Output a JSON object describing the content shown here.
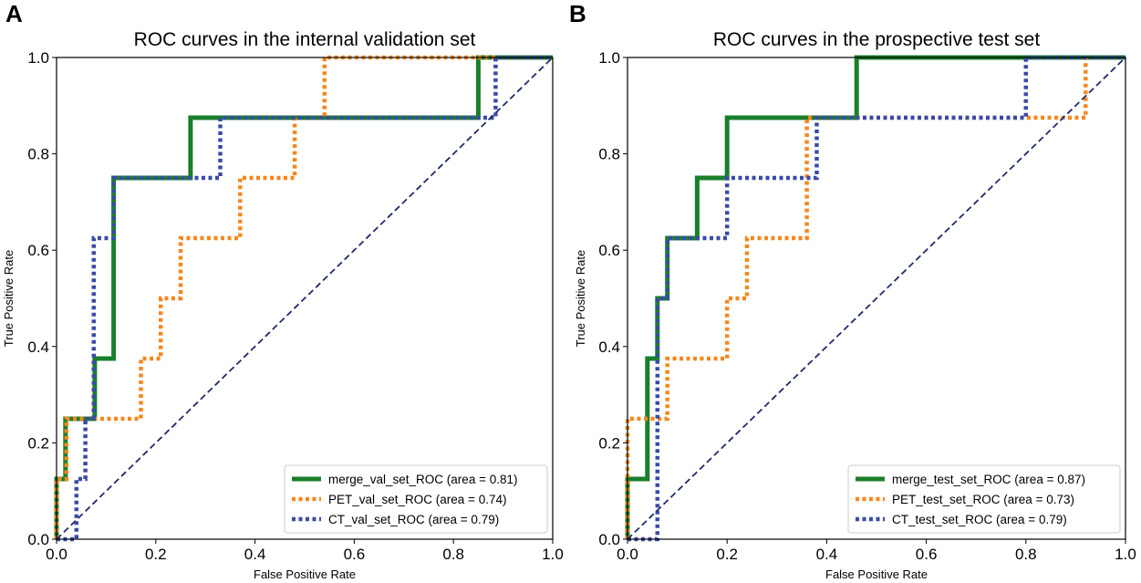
{
  "panel_letters": [
    "A",
    "B"
  ],
  "chart_data": [
    {
      "type": "line",
      "title": "ROC curves in the internal validation set",
      "xlabel": "False Positive Rate",
      "ylabel": "True Positive Rate",
      "xlim": [
        0,
        1
      ],
      "ylim": [
        0,
        1
      ],
      "xticks": [
        "0.0",
        "0.2",
        "0.4",
        "0.6",
        "0.8",
        "1.0"
      ],
      "yticks": [
        "0.0",
        "0.2",
        "0.4",
        "0.6",
        "0.8",
        "1.0"
      ],
      "legend_position": "lower-right",
      "series": [
        {
          "name": "merge_val_set_ROC",
          "legend_label": "merge_val_set_ROC (area = 0.81)",
          "area": 0.81,
          "style": "solid",
          "color": "#1a7f2a",
          "points": [
            [
              0,
              0
            ],
            [
              0,
              0.125
            ],
            [
              0.018,
              0.125
            ],
            [
              0.018,
              0.25
            ],
            [
              0.077,
              0.25
            ],
            [
              0.077,
              0.375
            ],
            [
              0.115,
              0.375
            ],
            [
              0.115,
              0.75
            ],
            [
              0.27,
              0.75
            ],
            [
              0.27,
              0.875
            ],
            [
              0.85,
              0.875
            ],
            [
              0.85,
              1.0
            ],
            [
              1.0,
              1.0
            ]
          ]
        },
        {
          "name": "PET_val_set_ROC",
          "legend_label": "PET_val_set_ROC (area = 0.74)",
          "area": 0.74,
          "style": "dotted",
          "color": "#f5871f",
          "points": [
            [
              0,
              0
            ],
            [
              0,
              0.125
            ],
            [
              0.02,
              0.125
            ],
            [
              0.02,
              0.25
            ],
            [
              0.17,
              0.25
            ],
            [
              0.17,
              0.375
            ],
            [
              0.21,
              0.375
            ],
            [
              0.21,
              0.5
            ],
            [
              0.25,
              0.5
            ],
            [
              0.25,
              0.625
            ],
            [
              0.37,
              0.625
            ],
            [
              0.37,
              0.75
            ],
            [
              0.48,
              0.75
            ],
            [
              0.48,
              0.875
            ],
            [
              0.54,
              0.875
            ],
            [
              0.54,
              1.0
            ],
            [
              1.0,
              1.0
            ]
          ]
        },
        {
          "name": "CT_val_set_ROC",
          "legend_label": "CT_val_set_ROC (area = 0.79)",
          "area": 0.79,
          "style": "dotted",
          "color": "#3a4aa8",
          "points": [
            [
              0,
              0
            ],
            [
              0.04,
              0
            ],
            [
              0.04,
              0.125
            ],
            [
              0.058,
              0.125
            ],
            [
              0.058,
              0.25
            ],
            [
              0.075,
              0.25
            ],
            [
              0.075,
              0.625
            ],
            [
              0.115,
              0.625
            ],
            [
              0.115,
              0.75
            ],
            [
              0.33,
              0.75
            ],
            [
              0.33,
              0.875
            ],
            [
              0.885,
              0.875
            ],
            [
              0.885,
              1.0
            ],
            [
              1.0,
              1.0
            ]
          ]
        },
        {
          "name": "chance",
          "style": "dashed",
          "color": "#1f2a6b",
          "points": [
            [
              0,
              0
            ],
            [
              1,
              1
            ]
          ]
        }
      ]
    },
    {
      "type": "line",
      "title": "ROC curves in the prospective test set",
      "xlabel": "False Positive Rate",
      "ylabel": "True Positive Rate",
      "xlim": [
        0,
        1
      ],
      "ylim": [
        0,
        1
      ],
      "xticks": [
        "0.0",
        "0.2",
        "0.4",
        "0.6",
        "0.8",
        "1.0"
      ],
      "yticks": [
        "0.0",
        "0.2",
        "0.4",
        "0.6",
        "0.8",
        "1.0"
      ],
      "legend_position": "lower-right",
      "series": [
        {
          "name": "merge_test_set_ROC",
          "legend_label": "merge_test_set_ROC (area = 0.87)",
          "area": 0.87,
          "style": "solid",
          "color": "#1a7f2a",
          "points": [
            [
              0,
              0
            ],
            [
              0,
              0.125
            ],
            [
              0.04,
              0.125
            ],
            [
              0.04,
              0.375
            ],
            [
              0.06,
              0.375
            ],
            [
              0.06,
              0.5
            ],
            [
              0.08,
              0.5
            ],
            [
              0.08,
              0.625
            ],
            [
              0.14,
              0.625
            ],
            [
              0.14,
              0.75
            ],
            [
              0.2,
              0.75
            ],
            [
              0.2,
              0.875
            ],
            [
              0.46,
              0.875
            ],
            [
              0.46,
              1.0
            ],
            [
              1.0,
              1.0
            ]
          ]
        },
        {
          "name": "PET_test_set_ROC",
          "legend_label": "PET_test_set_ROC (area = 0.73)",
          "area": 0.73,
          "style": "dotted",
          "color": "#f5871f",
          "points": [
            [
              0,
              0
            ],
            [
              0,
              0.25
            ],
            [
              0.06,
              0.25
            ],
            [
              0.06,
              0.25
            ],
            [
              0.08,
              0.25
            ],
            [
              0.08,
              0.375
            ],
            [
              0.2,
              0.375
            ],
            [
              0.2,
              0.5
            ],
            [
              0.24,
              0.5
            ],
            [
              0.24,
              0.625
            ],
            [
              0.36,
              0.625
            ],
            [
              0.36,
              0.875
            ],
            [
              0.8,
              0.875
            ],
            [
              0.8,
              0.875
            ],
            [
              0.92,
              0.875
            ],
            [
              0.92,
              1.0
            ],
            [
              1.0,
              1.0
            ]
          ]
        },
        {
          "name": "CT_test_set_ROC",
          "legend_label": "CT_test_set_ROC (area = 0.79)",
          "area": 0.79,
          "style": "dotted",
          "color": "#3a4aa8",
          "points": [
            [
              0,
              0
            ],
            [
              0.06,
              0
            ],
            [
              0.06,
              0.5
            ],
            [
              0.08,
              0.5
            ],
            [
              0.08,
              0.625
            ],
            [
              0.2,
              0.625
            ],
            [
              0.2,
              0.75
            ],
            [
              0.38,
              0.75
            ],
            [
              0.38,
              0.875
            ],
            [
              0.8,
              0.875
            ],
            [
              0.8,
              1.0
            ],
            [
              1.0,
              1.0
            ]
          ]
        },
        {
          "name": "chance",
          "style": "dashed",
          "color": "#1f2a6b",
          "points": [
            [
              0,
              0
            ],
            [
              1,
              1
            ]
          ]
        }
      ]
    }
  ]
}
